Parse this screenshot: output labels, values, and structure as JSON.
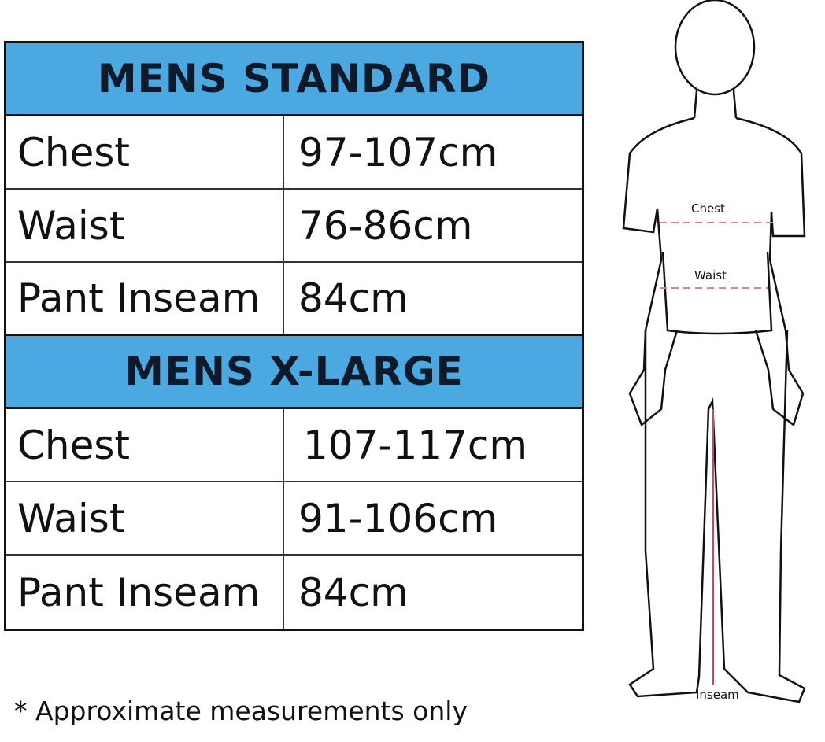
{
  "sections": [
    {
      "title": "MENS STANDARD",
      "rows": [
        {
          "label": "Chest",
          "value": "97-107cm"
        },
        {
          "label": "Waist",
          "value": "76-86cm"
        },
        {
          "label": "Pant Inseam",
          "value": "84cm"
        }
      ]
    },
    {
      "title": "MENS X-LARGE",
      "rows": [
        {
          "label": "Chest",
          "value": "107-117cm"
        },
        {
          "label": "Waist",
          "value": "91-106cm"
        },
        {
          "label": "Pant Inseam",
          "value": "84cm"
        }
      ]
    }
  ],
  "note": "* Approximate measurements only",
  "figure": {
    "chest": "Chest",
    "waist": "Waist",
    "inseam": "Inseam"
  },
  "colors": {
    "header": "#4ba8e0",
    "measure_line": "#c98a94"
  }
}
